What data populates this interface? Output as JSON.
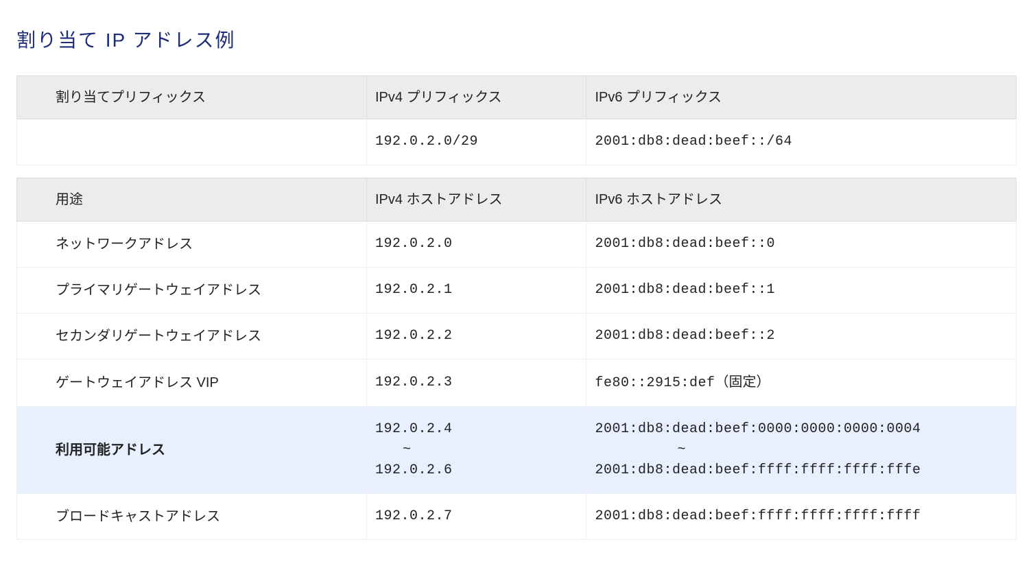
{
  "title": "割り当て IP アドレス例",
  "title_color": "#1d2c7a",
  "colors": {
    "page_bg": "#ffffff",
    "text": "#222222",
    "table_border": "#dddddd",
    "row_border": "#eeeeee",
    "header_bg": "#ececec",
    "highlight_bg": "#e8efff"
  },
  "fonts": {
    "body_family": "-apple-system, Hiragino Sans, Meiryo, sans-serif",
    "mono_family": "Lucida Console, Monaco, Consolas, monospace",
    "title_size_pt": 21,
    "body_size_pt": 15
  },
  "layout": {
    "col_widths_pct": [
      35,
      22,
      43
    ]
  },
  "prefix_table": {
    "columns": [
      "割り当てプリフィックス",
      "IPv4 プリフィックス",
      "IPv6 プリフィックス"
    ],
    "rows": [
      {
        "label": "",
        "ipv4": "192.0.2.0/29",
        "ipv6": "2001:db8:dead:beef::/64"
      }
    ]
  },
  "host_table": {
    "columns": [
      "用途",
      "IPv4 ホストアドレス",
      "IPv6 ホストアドレス"
    ],
    "rows": [
      {
        "label": "ネットワークアドレス",
        "ipv4": "192.0.2.0",
        "ipv6": "2001:db8:dead:beef::0",
        "highlight": false
      },
      {
        "label": "プライマリゲートウェイアドレス",
        "ipv4": "192.0.2.1",
        "ipv6": "2001:db8:dead:beef::1",
        "highlight": false
      },
      {
        "label": "セカンダリゲートウェイアドレス",
        "ipv4": "192.0.2.2",
        "ipv6": "2001:db8:dead:beef::2",
        "highlight": false
      },
      {
        "label": "ゲートウェイアドレス VIP",
        "ipv4": "192.0.2.3",
        "ipv6": "fe80::2915:def",
        "ipv6_note": "（固定）",
        "highlight": false
      },
      {
        "label": "利用可能アドレス",
        "ipv4_range": {
          "start": "192.0.2.4",
          "sep": "~",
          "end": "192.0.2.6"
        },
        "ipv6_range": {
          "start": "2001:db8:dead:beef:0000:0000:0000:0004",
          "sep": "~",
          "end": "2001:db8:dead:beef:ffff:ffff:ffff:fffe"
        },
        "highlight": true
      },
      {
        "label": "ブロードキャストアドレス",
        "ipv4": "192.0.2.7",
        "ipv6": "2001:db8:dead:beef:ffff:ffff:ffff:ffff",
        "highlight": false
      }
    ]
  }
}
